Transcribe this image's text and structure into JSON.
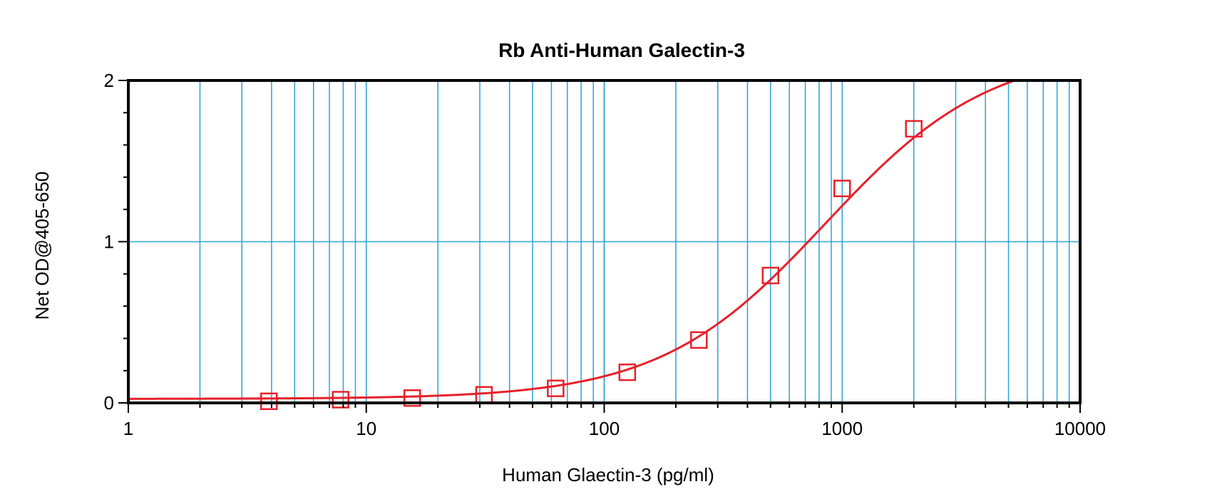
{
  "chart_data": {
    "type": "scatter",
    "title": "Rb Anti-Human Galectin-3",
    "xlabel": "Human Glaectin-3 (pg/ml)",
    "ylabel": "Net OD@405-650",
    "x_scale": "log",
    "xlim": [
      1,
      10000
    ],
    "ylim": [
      0,
      2
    ],
    "grid": true,
    "legend": "none",
    "x_ticks": [
      {
        "value": 1,
        "label": "1"
      },
      {
        "value": 10,
        "label": "10"
      },
      {
        "value": 100,
        "label": "100"
      },
      {
        "value": 1000,
        "label": "1000"
      },
      {
        "value": 10000,
        "label": "10000"
      }
    ],
    "y_ticks": [
      {
        "value": 0,
        "label": "0"
      },
      {
        "value": 1,
        "label": "1"
      },
      {
        "value": 2,
        "label": "2"
      }
    ],
    "series": [
      {
        "marker": "square",
        "color": "#e8202a",
        "points": [
          {
            "x": 3.9,
            "y": 0.01
          },
          {
            "x": 7.8,
            "y": 0.02
          },
          {
            "x": 15.6,
            "y": 0.03
          },
          {
            "x": 31.25,
            "y": 0.05
          },
          {
            "x": 62.5,
            "y": 0.09
          },
          {
            "x": 125,
            "y": 0.19
          },
          {
            "x": 250,
            "y": 0.39
          },
          {
            "x": 500,
            "y": 0.79
          },
          {
            "x": 1000,
            "y": 1.33
          },
          {
            "x": 2000,
            "y": 1.7
          }
        ]
      }
    ],
    "fit_curve": {
      "color": "#e8202a",
      "model": "4PL",
      "bottom": 0.025,
      "top": 2.2,
      "ec50": 850,
      "hill": 1.25,
      "x_range": [
        1,
        6600
      ]
    },
    "colors": {
      "grid": "#29a3d9",
      "frame": "#000000",
      "background": "#ffffff"
    }
  }
}
